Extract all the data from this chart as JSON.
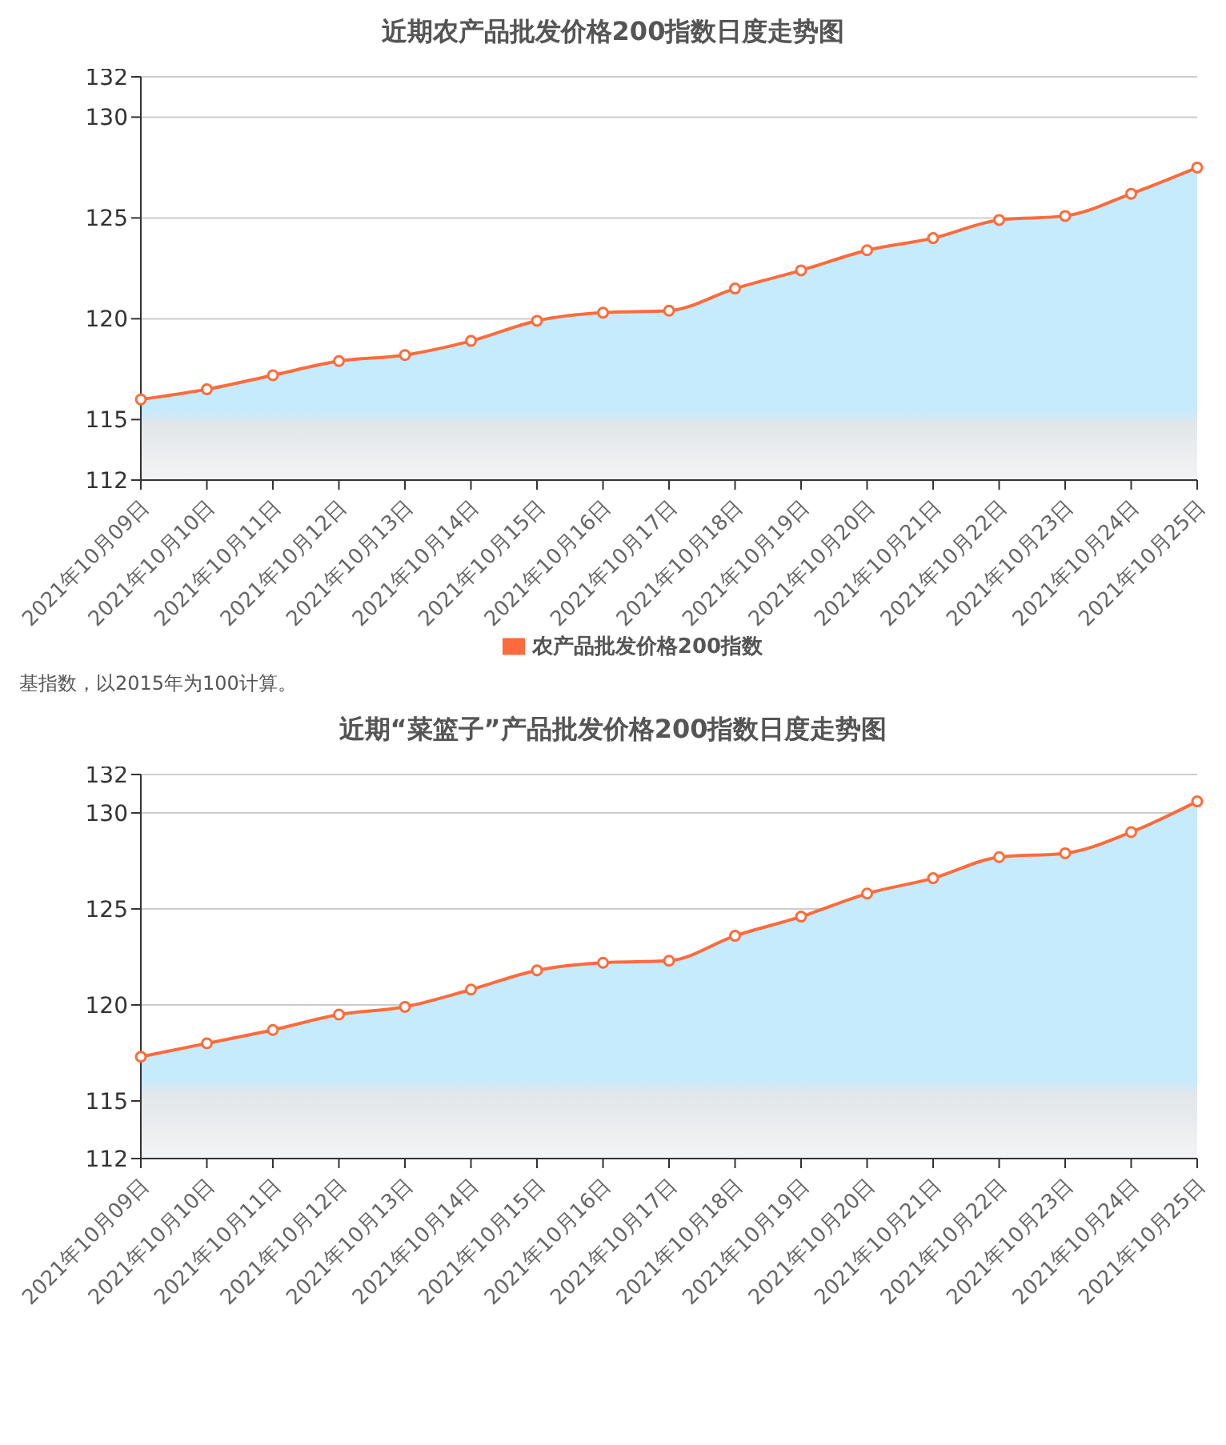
{
  "chart_data": [
    {
      "type": "area",
      "title": "近期农产品批发价格200指数日度走势图",
      "categories": [
        "2021年10月09日",
        "2021年10月10日",
        "2021年10月11日",
        "2021年10月12日",
        "2021年10月13日",
        "2021年10月14日",
        "2021年10月15日",
        "2021年10月16日",
        "2021年10月17日",
        "2021年10月18日",
        "2021年10月19日",
        "2021年10月20日",
        "2021年10月21日",
        "2021年10月22日",
        "2021年10月23日",
        "2021年10月24日",
        "2021年10月25日"
      ],
      "series": [
        {
          "name": "农产品批发价格200指数",
          "color": "#ff6b3b",
          "values": [
            116.0,
            116.5,
            117.2,
            117.9,
            118.2,
            118.9,
            119.9,
            120.3,
            120.4,
            121.5,
            122.4,
            123.4,
            124.0,
            124.9,
            125.1,
            126.2,
            127.5
          ]
        }
      ],
      "ylim": [
        112,
        132
      ],
      "yticks": [
        112,
        115,
        120,
        125,
        130,
        132
      ],
      "grid": "y",
      "legend": "bottom",
      "marker": "circle",
      "annotations": [
        "基指数，以2015年为100计算。"
      ]
    },
    {
      "type": "area",
      "title": "近期“菜篮子”产品批发价格200指数日度走势图",
      "categories": [
        "2021年10月09日",
        "2021年10月10日",
        "2021年10月11日",
        "2021年10月12日",
        "2021年10月13日",
        "2021年10月14日",
        "2021年10月15日",
        "2021年10月16日",
        "2021年10月17日",
        "2021年10月18日",
        "2021年10月19日",
        "2021年10月20日",
        "2021年10月21日",
        "2021年10月22日",
        "2021年10月23日",
        "2021年10月24日",
        "2021年10月25日"
      ],
      "series": [
        {
          "color": "#ff6b3b",
          "values": [
            117.3,
            118.0,
            118.7,
            119.5,
            119.9,
            120.8,
            121.8,
            122.2,
            122.3,
            123.6,
            124.6,
            125.8,
            126.6,
            127.7,
            127.9,
            129.0,
            130.6
          ]
        }
      ],
      "ylim": [
        112,
        132
      ],
      "yticks": [
        112,
        115,
        120,
        125,
        130,
        132
      ],
      "grid": "y",
      "marker": "circle"
    }
  ]
}
